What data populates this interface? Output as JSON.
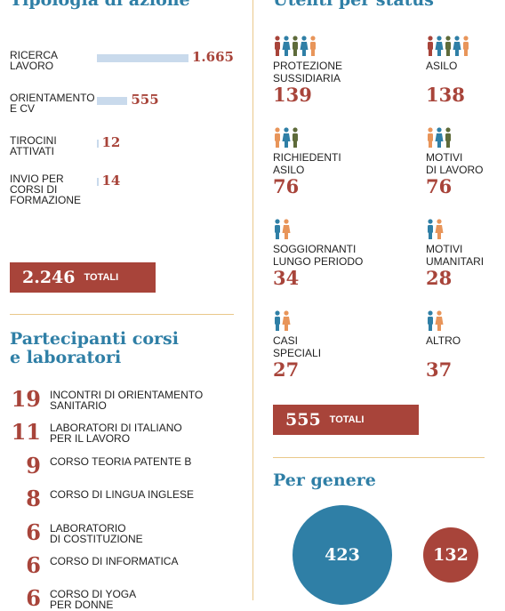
{
  "left": {
    "section1_title": "Tipologia di azione",
    "total_value": "2.246",
    "total_label": "TOTALI",
    "section2_title": "Partecipanti corsi\ne laboratori"
  },
  "right": {
    "section1_title": "Utenti per status",
    "total_value": "555",
    "total_label": "TOTALI",
    "section2_title": "Per genere"
  },
  "chart_data": [
    {
      "type": "bar",
      "title": "Tipologia di azione",
      "categories": [
        "RICERCA\nLAVORO",
        "ORIENTAMENTO\nE CV",
        "TIROCINI\nATTIVATI",
        "INVIO PER\nCORSI DI\nFORMAZIONE"
      ],
      "values": [
        1665,
        555,
        12,
        14
      ],
      "value_labels": [
        "1.665",
        "555",
        "12",
        "14"
      ],
      "total": "2.246"
    },
    {
      "type": "table",
      "title": "Partecipanti corsi e laboratori",
      "rows": [
        {
          "value": "19",
          "label": "INCONTRI DI ORIENTAMENTO\nSANITARIO"
        },
        {
          "value": "11",
          "label": "LABORATORI DI ITALIANO\nPER IL LAVORO"
        },
        {
          "value": "9",
          "label": "CORSO TEORIA PATENTE B"
        },
        {
          "value": "8",
          "label": "CORSO DI LINGUA INGLESE"
        },
        {
          "value": "6",
          "label": "LABORATORIO\nDI COSTITUZIONE"
        },
        {
          "value": "6",
          "label": "CORSO DI INFORMATICA"
        },
        {
          "value": "6",
          "label": "CORSO DI YOGA\nPER DONNE"
        }
      ]
    },
    {
      "type": "table",
      "title": "Utenti per status",
      "items": [
        {
          "label": "PROTEZIONE\nSUSSIDIARIA",
          "value": "139",
          "icons": 5
        },
        {
          "label": "ASILO",
          "value": "138",
          "icons": 5
        },
        {
          "label": "RICHIEDENTI\nASILO",
          "value": "76",
          "icons": 3
        },
        {
          "label": "MOTIVI\nDI LAVORO",
          "value": "76",
          "icons": 3
        },
        {
          "label": "SOGGIORNANTI\nLUNGO PERIODO",
          "value": "34",
          "icons": 2
        },
        {
          "label": "MOTIVI\nUMANITARI",
          "value": "28",
          "icons": 2
        },
        {
          "label": "CASI\nSPECIALI",
          "value": "27",
          "icons": 2
        },
        {
          "label": "ALTRO",
          "value": "37",
          "icons": 2
        }
      ],
      "total": "555"
    },
    {
      "type": "pie",
      "title": "Per genere",
      "values": [
        423,
        132
      ],
      "value_labels": [
        "423",
        "132"
      ],
      "colors": [
        "#2f7fa6",
        "#a8443a"
      ]
    }
  ],
  "colors": {
    "blue": "#2f7fa6",
    "red": "#a8443a",
    "bar": "#c9daec",
    "rule": "#e9c88a",
    "orange": "#e8955a",
    "olive": "#5e6b3a"
  }
}
